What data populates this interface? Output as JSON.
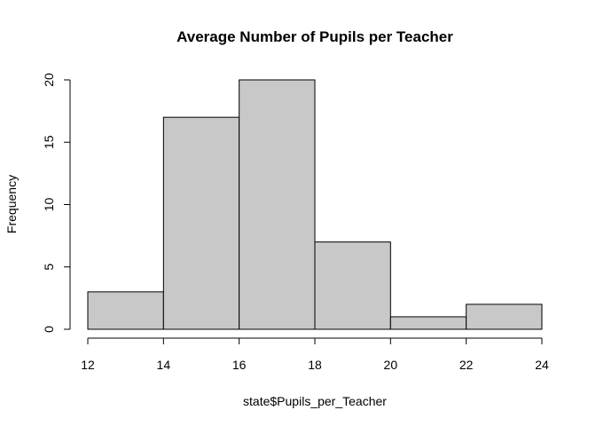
{
  "chart_data": {
    "type": "bar",
    "title": "Average Number of Pupils per Teacher",
    "xlabel": "state$Pupils_per_Teacher",
    "ylabel": "Frequency",
    "bins": [
      {
        "start": 12,
        "end": 14,
        "value": 3
      },
      {
        "start": 14,
        "end": 16,
        "value": 17
      },
      {
        "start": 16,
        "end": 18,
        "value": 20
      },
      {
        "start": 18,
        "end": 20,
        "value": 7
      },
      {
        "start": 20,
        "end": 22,
        "value": 1
      },
      {
        "start": 22,
        "end": 24,
        "value": 2
      }
    ],
    "xticks": [
      12,
      14,
      16,
      18,
      20,
      22,
      24
    ],
    "yticks": [
      0,
      5,
      10,
      15,
      20
    ],
    "xlim": [
      12,
      24
    ],
    "ylim": [
      0,
      20
    ],
    "grid": false,
    "bar_color": "#c8c8c8",
    "edge_color": "#000000"
  }
}
